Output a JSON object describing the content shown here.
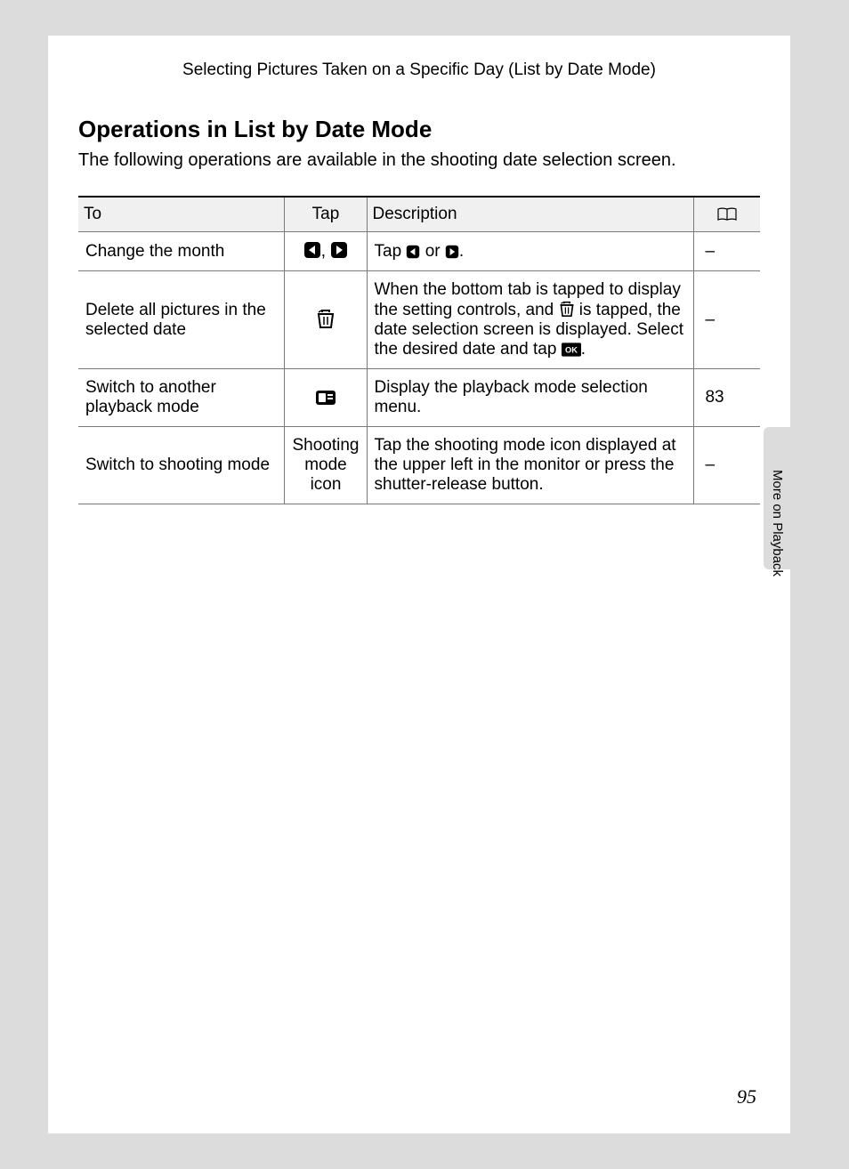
{
  "header": {
    "context": "Selecting Pictures Taken on a Specific Day (List by Date Mode)"
  },
  "section": {
    "title": "Operations in List by Date Mode",
    "intro": "The following operations are available in the shooting date selection screen."
  },
  "table": {
    "columns": {
      "to": "To",
      "tap": "Tap",
      "description": "Description"
    },
    "rows": [
      {
        "to": "Change the month",
        "tap_icons": [
          "left-arrow-box",
          "comma",
          "right-arrow-box"
        ],
        "desc_parts": [
          "Tap ",
          {
            "icon": "left-arrow-box"
          },
          " or ",
          {
            "icon": "right-arrow-box"
          },
          "."
        ],
        "ref": "–"
      },
      {
        "to": "Delete all pictures in the selected date",
        "tap_icons": [
          "trash"
        ],
        "desc_parts": [
          "When the bottom tab is tapped to display the setting controls, and ",
          {
            "icon": "trash"
          },
          " is tapped, the date selection screen is displayed. Select the desired date and tap ",
          {
            "icon": "ok-box"
          },
          "."
        ],
        "ref": "–"
      },
      {
        "to": "Switch to another playback mode",
        "tap_icons": [
          "playback-mode"
        ],
        "desc_parts": [
          "Display the playback mode selection menu."
        ],
        "ref": "83"
      },
      {
        "to": "Switch to shooting mode",
        "tap_text": "Shooting mode icon",
        "desc_parts": [
          "Tap the shooting mode icon displayed at the upper left in the monitor or press the shutter-release button."
        ],
        "ref": "–"
      }
    ]
  },
  "side_label": "More on Playback",
  "page_number": "95"
}
